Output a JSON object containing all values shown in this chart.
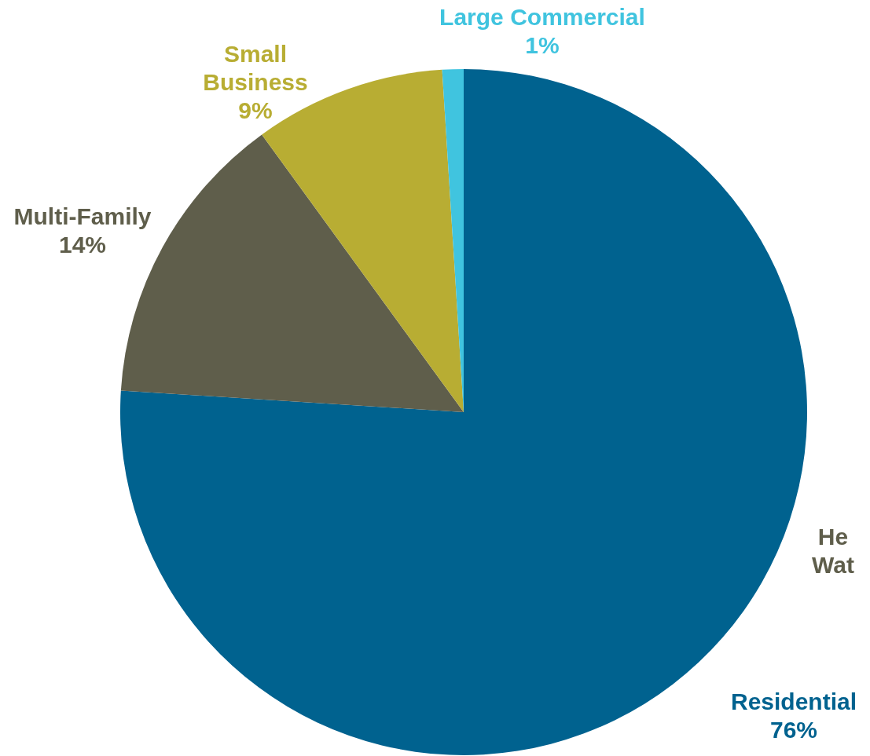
{
  "chart_data": {
    "type": "pie",
    "categories": [
      "Residential",
      "Multi-Family",
      "Small Business",
      "Large Commercial"
    ],
    "values": [
      76,
      14,
      9,
      1
    ],
    "colors": [
      "#00628f",
      "#5f5e4b",
      "#b8ad33",
      "#40c4df"
    ],
    "value_labels": [
      "76%",
      "14%",
      "9%",
      "1%"
    ],
    "annotations": [
      "He\nWat"
    ]
  }
}
